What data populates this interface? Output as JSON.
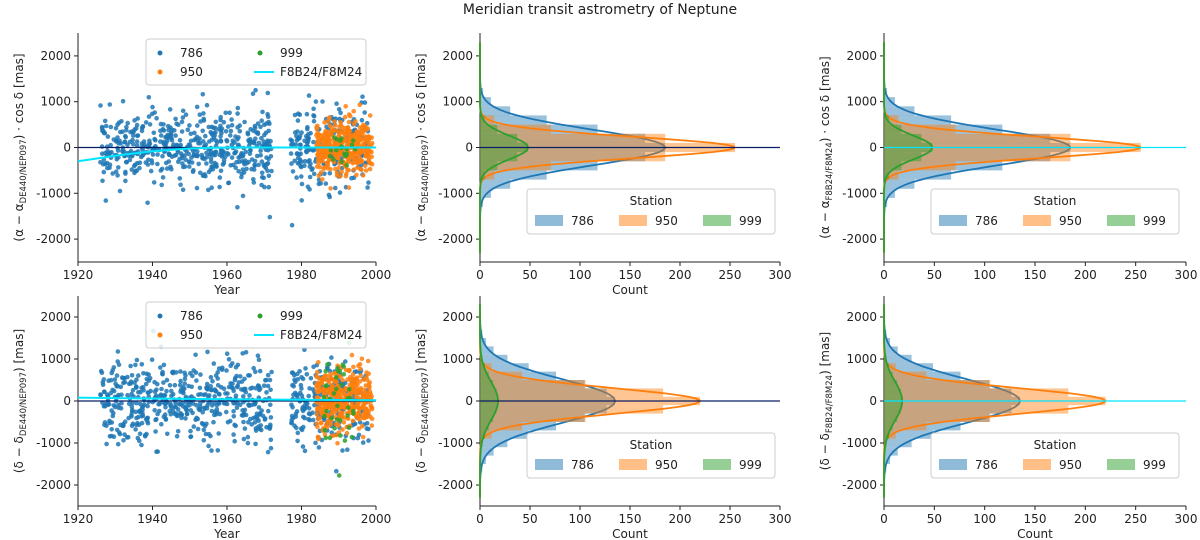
{
  "figure_title": "Meridian transit astrometry of Neptune",
  "colors": {
    "s786": "#1f77b4",
    "s950": "#ff7f0e",
    "s999": "#2ca02c",
    "model_line": "#00e5ff",
    "zero_line": "#0a1f66"
  },
  "chart_data": [
    {
      "type": "scatter",
      "panel": "top-left",
      "xlabel": "Year",
      "ylabel": "(α − α_DE440/NEP097) · cos δ [mas]",
      "xlim": [
        1920,
        2000
      ],
      "ylim": [
        -2500,
        2500
      ],
      "xticks": [
        "1920",
        "1940",
        "1960",
        "1980",
        "2000"
      ],
      "yticks": [
        "-2000",
        "-1000",
        "0",
        "1000",
        "2000"
      ],
      "legend": {
        "placement": "upper-center",
        "entries": [
          "786",
          "950",
          "999",
          "F8B24/F8M24"
        ]
      },
      "series": [
        {
          "name": "786",
          "year_range": [
            1926,
            1998
          ],
          "points": 820,
          "spread_sd_mas": 420
        },
        {
          "name": "950",
          "year_range": [
            1984,
            1999
          ],
          "points": 380,
          "spread_sd_mas": 300
        },
        {
          "name": "999",
          "year_range": [
            1986,
            1995
          ],
          "points": 20,
          "spread_sd_mas": 250
        },
        {
          "name": "F8B24/F8M24",
          "x": [
            1920,
            1930,
            1940,
            1950,
            1960,
            2000
          ],
          "y": [
            -300,
            -180,
            -80,
            -20,
            0,
            0
          ]
        }
      ]
    },
    {
      "type": "histogram",
      "panel": "top-middle",
      "xlabel": "Count",
      "ylabel": "(α − α_DE440/NEP097) · cos δ [mas]",
      "xlim": [
        0,
        300
      ],
      "ylim": [
        -2500,
        2500
      ],
      "xticks": [
        "0",
        "50",
        "100",
        "150",
        "200",
        "250",
        "300"
      ],
      "yticks": [
        "-2000",
        "-1000",
        "0",
        "1000",
        "2000"
      ],
      "legend": {
        "title": "Station",
        "placement": "lower-right",
        "entries": [
          "786",
          "950",
          "999"
        ]
      },
      "series": [
        {
          "name": "786",
          "peak_count": 185,
          "sd_mas": 420
        },
        {
          "name": "950",
          "peak_count": 255,
          "sd_mas": 250
        },
        {
          "name": "999",
          "peak_count": 48,
          "sd_mas": 280
        }
      ]
    },
    {
      "type": "histogram",
      "panel": "top-right",
      "xlabel": "",
      "ylabel": "(α − α_F8B24/F8M24) · cos δ [mas]",
      "xlim": [
        0,
        300
      ],
      "ylim": [
        -2500,
        2500
      ],
      "xticks": [
        "0",
        "50",
        "100",
        "150",
        "200",
        "250",
        "300"
      ],
      "yticks": [
        "-2000",
        "-1000",
        "0",
        "1000",
        "2000"
      ],
      "legend": {
        "title": "Station",
        "placement": "lower-right",
        "entries": [
          "786",
          "950",
          "999"
        ]
      },
      "series": [
        {
          "name": "786",
          "peak_count": 185,
          "sd_mas": 420
        },
        {
          "name": "950",
          "peak_count": 255,
          "sd_mas": 250
        },
        {
          "name": "999",
          "peak_count": 48,
          "sd_mas": 280
        }
      ]
    },
    {
      "type": "scatter",
      "panel": "bottom-left",
      "xlabel": "Year",
      "ylabel": "(δ − δ_DE440/NEP097) [mas]",
      "xlim": [
        1920,
        2000
      ],
      "ylim": [
        -2500,
        2500
      ],
      "xticks": [
        "1920",
        "1940",
        "1960",
        "1980",
        "2000"
      ],
      "yticks": [
        "-2000",
        "-1000",
        "0",
        "1000",
        "2000"
      ],
      "legend": {
        "placement": "upper-center",
        "entries": [
          "786",
          "950",
          "999",
          "F8B24/F8M24"
        ]
      },
      "series": [
        {
          "name": "786",
          "year_range": [
            1926,
            1998
          ],
          "points": 820,
          "spread_sd_mas": 520
        },
        {
          "name": "950",
          "year_range": [
            1984,
            1999
          ],
          "points": 380,
          "spread_sd_mas": 380
        },
        {
          "name": "999",
          "year_range": [
            1986,
            1994
          ],
          "points": 40,
          "spread_sd_mas": 600
        },
        {
          "name": "F8B24/F8M24",
          "x": [
            1920,
            1940,
            1960,
            2000
          ],
          "y": [
            80,
            60,
            40,
            20
          ]
        }
      ]
    },
    {
      "type": "histogram",
      "panel": "bottom-middle",
      "xlabel": "Count",
      "ylabel": "(δ − δ_DE440/NEP097) [mas]",
      "xlim": [
        0,
        300
      ],
      "ylim": [
        -2500,
        2500
      ],
      "xticks": [
        "0",
        "50",
        "100",
        "150",
        "200",
        "250",
        "300"
      ],
      "yticks": [
        "-2000",
        "-1000",
        "0",
        "1000",
        "2000"
      ],
      "legend": {
        "title": "Station",
        "placement": "lower-right",
        "entries": [
          "786",
          "950",
          "999"
        ]
      },
      "series": [
        {
          "name": "786",
          "peak_count": 135,
          "sd_mas": 560
        },
        {
          "name": "950",
          "peak_count": 220,
          "sd_mas": 330
        },
        {
          "name": "999",
          "peak_count": 18,
          "sd_mas": 500
        }
      ]
    },
    {
      "type": "histogram",
      "panel": "bottom-right",
      "xlabel": "Count",
      "ylabel": "(δ − δ_F8B24/F8M24) [mas]",
      "xlim": [
        0,
        300
      ],
      "ylim": [
        -2500,
        2500
      ],
      "xticks": [
        "0",
        "50",
        "100",
        "150",
        "200",
        "250",
        "300"
      ],
      "yticks": [
        "-2000",
        "-1000",
        "0",
        "1000",
        "2000"
      ],
      "legend": {
        "title": "Station",
        "placement": "lower-right",
        "entries": [
          "786",
          "950",
          "999"
        ]
      },
      "series": [
        {
          "name": "786",
          "peak_count": 135,
          "sd_mas": 560
        },
        {
          "name": "950",
          "peak_count": 220,
          "sd_mas": 330
        },
        {
          "name": "999",
          "peak_count": 18,
          "sd_mas": 500
        }
      ]
    }
  ]
}
